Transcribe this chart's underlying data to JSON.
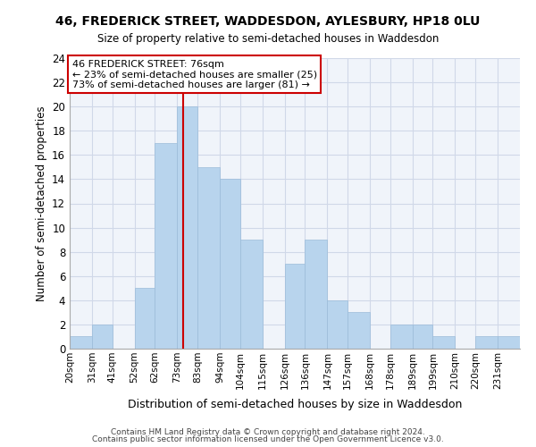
{
  "title1": "46, FREDERICK STREET, WADDESDON, AYLESBURY, HP18 0LU",
  "title2": "Size of property relative to semi-detached houses in Waddesdon",
  "xlabel": "Distribution of semi-detached houses by size in Waddesdon",
  "ylabel": "Number of semi-detached properties",
  "bin_labels": [
    "20sqm",
    "31sqm",
    "41sqm",
    "52sqm",
    "62sqm",
    "73sqm",
    "83sqm",
    "94sqm",
    "104sqm",
    "115sqm",
    "126sqm",
    "136sqm",
    "147sqm",
    "157sqm",
    "168sqm",
    "178sqm",
    "189sqm",
    "199sqm",
    "210sqm",
    "220sqm",
    "231sqm"
  ],
  "bin_edges": [
    20,
    31,
    41,
    52,
    62,
    73,
    83,
    94,
    104,
    115,
    126,
    136,
    147,
    157,
    168,
    178,
    189,
    199,
    210,
    220,
    231,
    242
  ],
  "counts": [
    1,
    2,
    0,
    5,
    17,
    20,
    15,
    14,
    9,
    0,
    7,
    9,
    4,
    3,
    0,
    2,
    2,
    1,
    0,
    1,
    1
  ],
  "bar_color": "#b8d4ed",
  "bar_edge_color": "#9bbcd9",
  "grid_color": "#d0d8e8",
  "property_line_x": 76,
  "property_line_color": "#cc0000",
  "annotation_title": "46 FREDERICK STREET: 76sqm",
  "annotation_line1": "← 23% of semi-detached houses are smaller (25)",
  "annotation_line2": "73% of semi-detached houses are larger (81) →",
  "annotation_box_color": "#ffffff",
  "annotation_box_edge": "#cc0000",
  "ylim": [
    0,
    24
  ],
  "yticks": [
    0,
    2,
    4,
    6,
    8,
    10,
    12,
    14,
    16,
    18,
    20,
    22,
    24
  ],
  "footer1": "Contains HM Land Registry data © Crown copyright and database right 2024.",
  "footer2": "Contains public sector information licensed under the Open Government Licence v3.0."
}
